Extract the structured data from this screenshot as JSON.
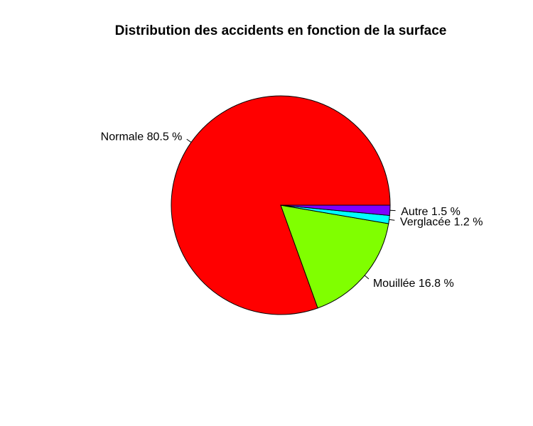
{
  "chart_data": {
    "type": "pie",
    "title": "Distribution des accidents en fonction de la surface",
    "direction": "counterclockwise",
    "start_angle_deg": 0,
    "slices": [
      {
        "label": "Normale 80.5 %",
        "category": "Normale",
        "value": 80.5,
        "color": "#FF0000"
      },
      {
        "label": "Mouillée 16.8 %",
        "category": "Mouillée",
        "value": 16.8,
        "color": "#80FF00"
      },
      {
        "label": "Verglacée 1.2 %",
        "category": "Verglacée",
        "value": 1.2,
        "color": "#00FFFF"
      },
      {
        "label": "Autre 1.5 %",
        "category": "Autre",
        "value": 1.5,
        "color": "#8000FF"
      }
    ]
  }
}
